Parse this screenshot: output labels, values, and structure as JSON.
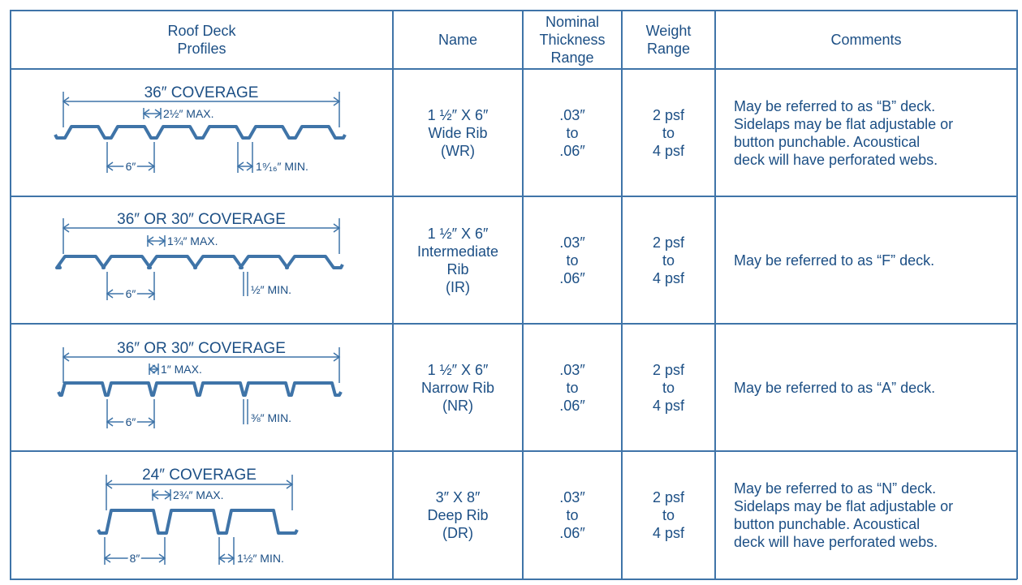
{
  "colors": {
    "text": "#1c4f85",
    "border": "#3f74a8"
  },
  "headers": [
    "Roof Deck\nProfiles",
    "Name",
    "Nominal\nThickness\nRange",
    "Weight\nRange",
    "Comments"
  ],
  "rows": [
    {
      "profile": {
        "coverage": "36″ COVERAGE",
        "max": "2½″ MAX.",
        "pitch": "6″",
        "min": "1⁹⁄₁₆″ MIN."
      },
      "name": [
        "1 ½″ X 6″",
        "Wide Rib",
        "(WR)"
      ],
      "thickness": [
        ".03″",
        "to",
        ".06″"
      ],
      "weight": [
        "2 psf",
        "to",
        "4 psf"
      ],
      "comments": [
        "May be referred to as “B” deck.",
        "Sidelaps may be flat adjustable or",
        "button punchable. Acoustical",
        "deck will have perforated webs."
      ]
    },
    {
      "profile": {
        "coverage": "36″ OR 30″ COVERAGE",
        "max": "1¾″ MAX.",
        "pitch": "6″",
        "min": "½″ MIN."
      },
      "name": [
        "1 ½″ X 6″",
        "Intermediate",
        "Rib",
        "(IR)"
      ],
      "thickness": [
        ".03″",
        "to",
        ".06″"
      ],
      "weight": [
        "2 psf",
        "to",
        "4 psf"
      ],
      "comments": [
        "May be referred to as “F” deck."
      ]
    },
    {
      "profile": {
        "coverage": "36″ OR 30″ COVERAGE",
        "max": "1″ MAX.",
        "pitch": "6″",
        "min": "⅜″ MIN."
      },
      "name": [
        "1 ½″ X 6″",
        "Narrow Rib",
        "(NR)"
      ],
      "thickness": [
        ".03″",
        "to",
        ".06″"
      ],
      "weight": [
        "2 psf",
        "to",
        "4 psf"
      ],
      "comments": [
        "May be referred to as “A” deck."
      ]
    },
    {
      "profile": {
        "coverage": "24″ COVERAGE",
        "max": "2¾″ MAX.",
        "pitch": "8″",
        "min": "1½″ MIN."
      },
      "name": [
        "3″ X 8″",
        "Deep Rib",
        "(DR)"
      ],
      "thickness": [
        ".03″",
        "to",
        ".06″"
      ],
      "weight": [
        "2 psf",
        "to",
        "4 psf"
      ],
      "comments": [
        "May be referred to as “N” deck.",
        "Sidelaps may be flat adjustable or",
        "button punchable. Acoustical",
        "deck will have perforated webs."
      ]
    }
  ]
}
